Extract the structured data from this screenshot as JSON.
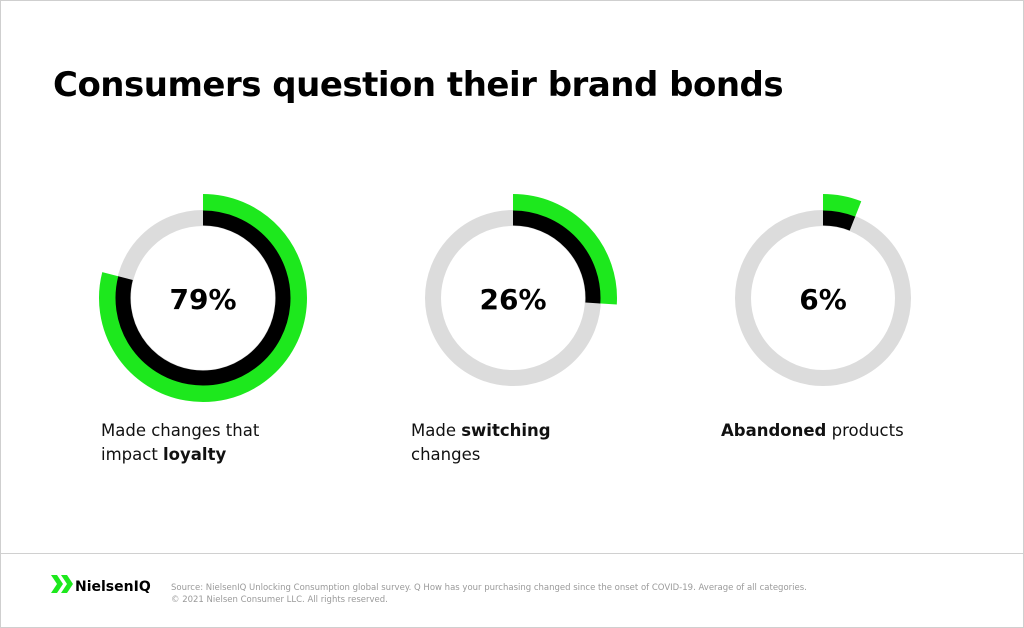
{
  "title": "Consumers question their brand bonds",
  "chart_data": [
    {
      "type": "donut",
      "values": [
        79
      ],
      "value_labels": [
        "79%"
      ],
      "color": "#1de81d",
      "track_color": "#dcdcdc",
      "caption": [
        {
          "text": "Made changes that impact "
        },
        {
          "text": "loyalty",
          "bold": true
        }
      ]
    },
    {
      "type": "donut",
      "values": [
        26
      ],
      "value_labels": [
        "26%"
      ],
      "color": "#1de81d",
      "track_color": "#dcdcdc",
      "caption": [
        {
          "text": "Made "
        },
        {
          "text": "switching",
          "bold": true
        },
        {
          "text": " changes"
        }
      ]
    },
    {
      "type": "donut",
      "values": [
        6
      ],
      "value_labels": [
        "6%"
      ],
      "color": "#1de81d",
      "track_color": "#dcdcdc",
      "caption": [
        {
          "text": "Abandoned",
          "bold": true
        },
        {
          "text": " products"
        }
      ]
    }
  ],
  "footer": {
    "brand": "NielsenIQ",
    "source": "Source: NielsenIQ Unlocking Consumption global survey. Q How has your purchasing changed since the onset of COVID-19. Average of all categories.",
    "copyright": "© 2021 Nielsen Consumer LLC. All rights reserved."
  }
}
